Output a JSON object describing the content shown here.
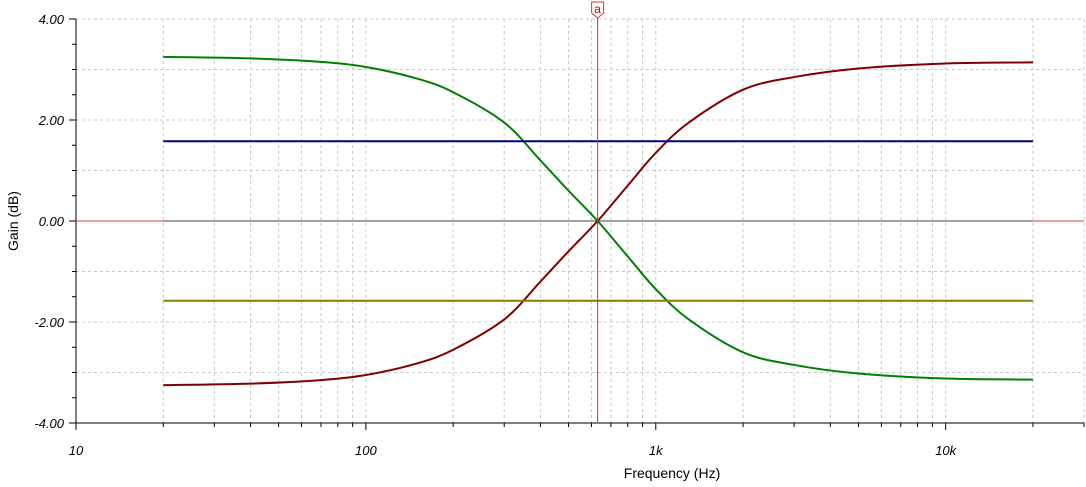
{
  "chart_data": {
    "type": "line",
    "title": "",
    "xlabel": "Frequency (Hz)",
    "ylabel": "Gain (dB)",
    "x_scale": "log",
    "xlim": [
      10,
      30000
    ],
    "ylim": [
      -4,
      4
    ],
    "grid": true,
    "legend": "none",
    "x_ticks": [
      {
        "value": 10,
        "label": "10"
      },
      {
        "value": 100,
        "label": "100"
      },
      {
        "value": 1000,
        "label": "1k"
      },
      {
        "value": 10000,
        "label": "10k"
      }
    ],
    "y_ticks": [
      {
        "value": 4,
        "label": "4.00"
      },
      {
        "value": 2,
        "label": "2.00"
      },
      {
        "value": 0,
        "label": "0.00"
      },
      {
        "value": -2,
        "label": "-2.00"
      },
      {
        "value": -4,
        "label": "-4.00"
      }
    ],
    "cursor": {
      "label": "a",
      "x": 630,
      "color": "#e03030"
    },
    "series": [
      {
        "color": "#008000",
        "x": [
          20,
          40,
          70,
          100,
          150,
          200,
          300,
          400,
          500,
          630,
          800,
          1000,
          1300,
          2000,
          3000,
          5000,
          10000,
          20000
        ],
        "y": [
          3.25,
          3.22,
          3.15,
          3.05,
          2.82,
          2.55,
          1.95,
          1.2,
          0.6,
          0.0,
          -0.7,
          -1.35,
          -1.95,
          -2.6,
          -2.85,
          -3.02,
          -3.12,
          -3.14
        ]
      },
      {
        "color": "#800000",
        "x": [
          20,
          40,
          70,
          100,
          150,
          200,
          300,
          400,
          500,
          630,
          800,
          1000,
          1300,
          2000,
          3000,
          5000,
          10000,
          20000
        ],
        "y": [
          -3.25,
          -3.22,
          -3.15,
          -3.05,
          -2.82,
          -2.55,
          -1.95,
          -1.2,
          -0.6,
          0.0,
          0.7,
          1.35,
          1.95,
          2.6,
          2.85,
          3.02,
          3.12,
          3.14
        ]
      },
      {
        "color": "#000080",
        "x": [
          20,
          20000
        ],
        "y": [
          1.58,
          1.58
        ]
      },
      {
        "color": "#808000",
        "x": [
          20,
          20000
        ],
        "y": [
          -1.58,
          -1.58
        ]
      },
      {
        "color": "#404040",
        "x": [
          20,
          20000
        ],
        "y": [
          0,
          0
        ]
      }
    ],
    "zero_marker_color": "#d04040"
  }
}
